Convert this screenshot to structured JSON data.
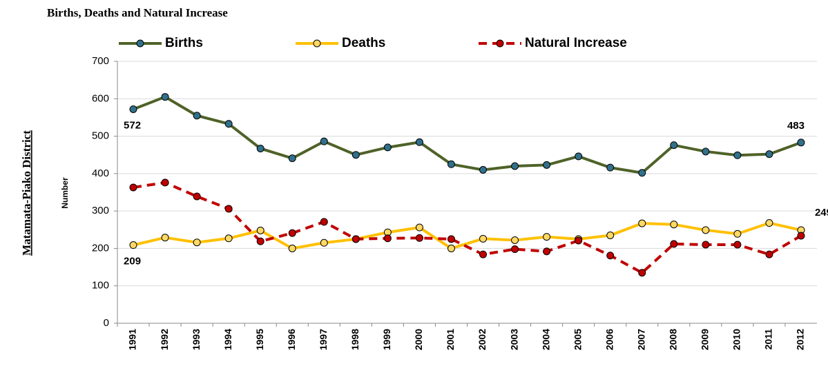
{
  "chart_data": {
    "type": "line",
    "title": "Births, Deaths and Natural Increase",
    "side_label": "Matamata-Piako District",
    "y_label": "Number",
    "categories": [
      "1991",
      "1992",
      "1993",
      "1994",
      "1995",
      "1996",
      "1997",
      "1998",
      "1999",
      "2000",
      "2001",
      "2002",
      "2003",
      "2004",
      "2005",
      "2006",
      "2007",
      "2008",
      "2009",
      "2010",
      "2011",
      "2012"
    ],
    "series": [
      {
        "name": "Births",
        "color": "#4f6228",
        "marker_color": "#31708a",
        "dashed": false,
        "values": [
          572,
          605,
          555,
          533,
          467,
          441,
          486,
          450,
          470,
          484,
          425,
          410,
          420,
          423,
          446,
          416,
          402,
          476,
          459,
          449,
          452,
          483
        ]
      },
      {
        "name": "Deaths",
        "color": "#ffc000",
        "marker_color": "#ffd966",
        "dashed": false,
        "values": [
          209,
          229,
          216,
          227,
          248,
          200,
          215,
          225,
          243,
          256,
          200,
          226,
          222,
          231,
          225,
          235,
          267,
          264,
          249,
          239,
          268,
          249
        ]
      },
      {
        "name": "Natural Increase",
        "color": "#c00000",
        "marker_color": "#c00000",
        "dashed": true,
        "values": [
          363,
          376,
          339,
          306,
          219,
          241,
          271,
          225,
          227,
          228,
          225,
          184,
          198,
          192,
          221,
          181,
          135,
          212,
          210,
          210,
          184,
          234
        ]
      }
    ],
    "ylim": [
      0,
      700
    ],
    "yticks": [
      0,
      100,
      200,
      300,
      400,
      500,
      600,
      700
    ],
    "grid": true
  }
}
